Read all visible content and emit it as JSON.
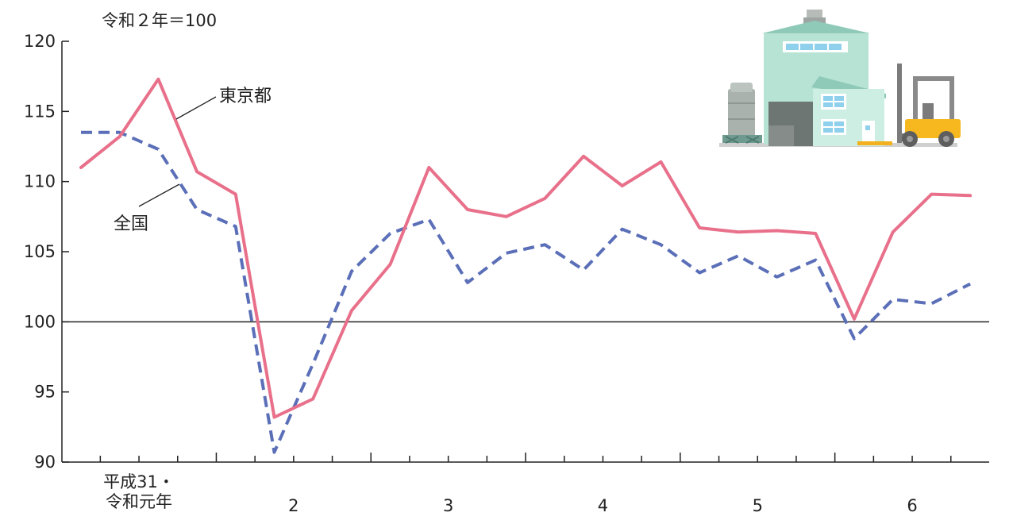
{
  "chart_data": {
    "type": "line",
    "unit_label": "令和２年＝100",
    "ylim": [
      90,
      120
    ],
    "yticks": [
      90,
      95,
      100,
      105,
      110,
      115,
      120
    ],
    "reference_line": 100,
    "x_year_labels": [
      {
        "lines": [
          "平成31・",
          "令和元年"
        ],
        "index": 1
      },
      {
        "lines": [
          "2"
        ],
        "index": 5
      },
      {
        "lines": [
          "3"
        ],
        "index": 9
      },
      {
        "lines": [
          "4"
        ],
        "index": 13
      },
      {
        "lines": [
          "5"
        ],
        "index": 17
      },
      {
        "lines": [
          "6"
        ],
        "index": 21
      }
    ],
    "series": [
      {
        "name": "東京都",
        "color": "#e8708a",
        "style": "solid",
        "values": [
          111.0,
          113.2,
          117.3,
          110.7,
          109.1,
          93.2,
          94.5,
          100.8,
          104.1,
          111.0,
          108.0,
          107.5,
          108.8,
          111.8,
          109.7,
          111.4,
          106.7,
          106.4,
          106.5,
          106.3,
          100.2,
          106.4,
          109.1,
          109.0
        ]
      },
      {
        "name": "全国",
        "color": "#5b6fb8",
        "style": "dashed",
        "values": [
          113.5,
          113.5,
          112.3,
          108.0,
          106.8,
          90.7,
          97.0,
          103.6,
          106.3,
          107.3,
          102.8,
          104.9,
          105.5,
          103.7,
          106.6,
          105.5,
          103.5,
          104.7,
          103.2,
          104.4,
          98.8,
          101.6,
          101.3,
          102.7
        ]
      }
    ]
  },
  "illustration": {
    "name": "factory-with-forklift"
  }
}
